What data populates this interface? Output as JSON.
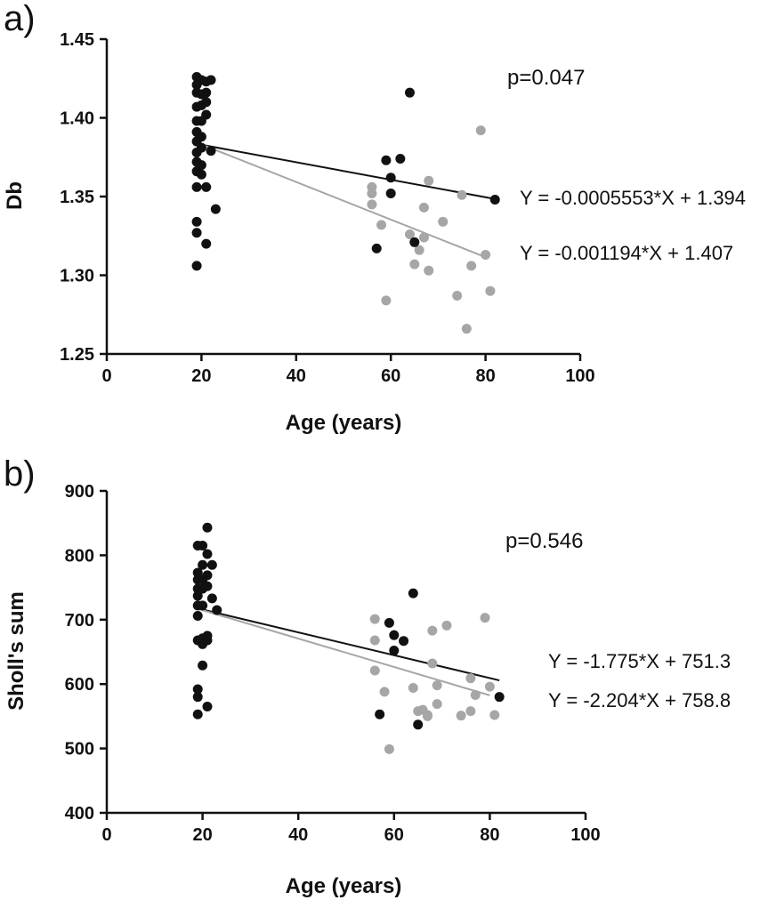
{
  "chart_data": [
    {
      "panel_label": "a)",
      "type": "scatter",
      "xlabel": "Age (years)",
      "ylabel": "Db",
      "xlim": [
        0,
        100
      ],
      "ylim": [
        1.25,
        1.45
      ],
      "x_ticks": [
        0,
        20,
        40,
        60,
        80,
        100
      ],
      "y_ticks": [
        1.25,
        1.3,
        1.35,
        1.4,
        1.45
      ],
      "y_decimals": 2,
      "annotation": "p=0.047",
      "colors": {
        "black": "#111111",
        "gray": "#a6a6a6"
      },
      "series": [
        {
          "color": "black",
          "points": [
            [
              19,
              1.426
            ],
            [
              19,
              1.421
            ],
            [
              19,
              1.416
            ],
            [
              19,
              1.407
            ],
            [
              19,
              1.398
            ],
            [
              19,
              1.391
            ],
            [
              19,
              1.385
            ],
            [
              19,
              1.378
            ],
            [
              19,
              1.372
            ],
            [
              19,
              1.366
            ],
            [
              19,
              1.356
            ],
            [
              19,
              1.334
            ],
            [
              19,
              1.327
            ],
            [
              19,
              1.306
            ],
            [
              20,
              1.424
            ],
            [
              20,
              1.415
            ],
            [
              20,
              1.408
            ],
            [
              20,
              1.398
            ],
            [
              20,
              1.388
            ],
            [
              20,
              1.381
            ],
            [
              20,
              1.37
            ],
            [
              20,
              1.364
            ],
            [
              21,
              1.423
            ],
            [
              21,
              1.416
            ],
            [
              21,
              1.41
            ],
            [
              21,
              1.402
            ],
            [
              21,
              1.356
            ],
            [
              21,
              1.32
            ],
            [
              22,
              1.424
            ],
            [
              22,
              1.379
            ],
            [
              23,
              1.342
            ],
            [
              57,
              1.317
            ],
            [
              59,
              1.373
            ],
            [
              60,
              1.362
            ],
            [
              60,
              1.352
            ],
            [
              62,
              1.374
            ],
            [
              64,
              1.416
            ],
            [
              65,
              1.321
            ],
            [
              82,
              1.348
            ]
          ],
          "fit": {
            "slope": -0.0005553,
            "intercept": 1.394,
            "x_range": [
              19,
              82
            ],
            "label": "Y = -0.0005553*X + 1.394"
          }
        },
        {
          "color": "gray",
          "points": [
            [
              56,
              1.356
            ],
            [
              56,
              1.352
            ],
            [
              56,
              1.345
            ],
            [
              58,
              1.332
            ],
            [
              59,
              1.284
            ],
            [
              64,
              1.326
            ],
            [
              65,
              1.307
            ],
            [
              66,
              1.316
            ],
            [
              67,
              1.343
            ],
            [
              67,
              1.324
            ],
            [
              68,
              1.36
            ],
            [
              68,
              1.303
            ],
            [
              71,
              1.334
            ],
            [
              74,
              1.287
            ],
            [
              75,
              1.351
            ],
            [
              76,
              1.266
            ],
            [
              77,
              1.306
            ],
            [
              79,
              1.392
            ],
            [
              80,
              1.313
            ],
            [
              81,
              1.29
            ]
          ],
          "fit": {
            "slope": -0.001194,
            "intercept": 1.407,
            "x_range": [
              19,
              80
            ],
            "label": "Y = -0.001194*X + 1.407"
          }
        }
      ]
    },
    {
      "panel_label": "b)",
      "type": "scatter",
      "xlabel": "Age (years)",
      "ylabel": "Sholl's sum",
      "xlim": [
        0,
        100
      ],
      "ylim": [
        400,
        900
      ],
      "x_ticks": [
        0,
        20,
        40,
        60,
        80,
        100
      ],
      "y_ticks": [
        400,
        500,
        600,
        700,
        800,
        900
      ],
      "y_decimals": 0,
      "annotation": "p=0.546",
      "colors": {
        "black": "#111111",
        "gray": "#a6a6a6"
      },
      "series": [
        {
          "color": "black",
          "points": [
            [
              19,
              815
            ],
            [
              19,
              773
            ],
            [
              19,
              762
            ],
            [
              19,
              748
            ],
            [
              19,
              737
            ],
            [
              19,
              722
            ],
            [
              19,
              706
            ],
            [
              19,
              668
            ],
            [
              19,
              592
            ],
            [
              19,
              580
            ],
            [
              19,
              553
            ],
            [
              20,
              815
            ],
            [
              20,
              785
            ],
            [
              20,
              762
            ],
            [
              20,
              748
            ],
            [
              20,
              722
            ],
            [
              20,
              671
            ],
            [
              20,
              662
            ],
            [
              20,
              629
            ],
            [
              21,
              843
            ],
            [
              21,
              802
            ],
            [
              21,
              769
            ],
            [
              21,
              752
            ],
            [
              21,
              675
            ],
            [
              21,
              668
            ],
            [
              21,
              565
            ],
            [
              22,
              785
            ],
            [
              22,
              733
            ],
            [
              23,
              715
            ],
            [
              57,
              553
            ],
            [
              59,
              695
            ],
            [
              60,
              676
            ],
            [
              60,
              652
            ],
            [
              62,
              667
            ],
            [
              64,
              741
            ],
            [
              65,
              537
            ],
            [
              82,
              580
            ]
          ],
          "fit": {
            "slope": -1.775,
            "intercept": 751.3,
            "x_range": [
              19,
              82
            ],
            "label": "Y = -1.775*X + 751.3"
          }
        },
        {
          "color": "gray",
          "points": [
            [
              56,
              701
            ],
            [
              56,
              668
            ],
            [
              56,
              621
            ],
            [
              58,
              588
            ],
            [
              59,
              499
            ],
            [
              64,
              594
            ],
            [
              65,
              558
            ],
            [
              66,
              560
            ],
            [
              67,
              550
            ],
            [
              67,
              552
            ],
            [
              68,
              683
            ],
            [
              68,
              632
            ],
            [
              69,
              598
            ],
            [
              69,
              569
            ],
            [
              71,
              691
            ],
            [
              74,
              551
            ],
            [
              76,
              609
            ],
            [
              76,
              558
            ],
            [
              77,
              583
            ],
            [
              79,
              703
            ],
            [
              80,
              596
            ],
            [
              81,
              552
            ]
          ],
          "fit": {
            "slope": -2.204,
            "intercept": 758.8,
            "x_range": [
              19,
              80
            ],
            "label": "Y = -2.204*X + 758.8"
          }
        }
      ]
    }
  ]
}
